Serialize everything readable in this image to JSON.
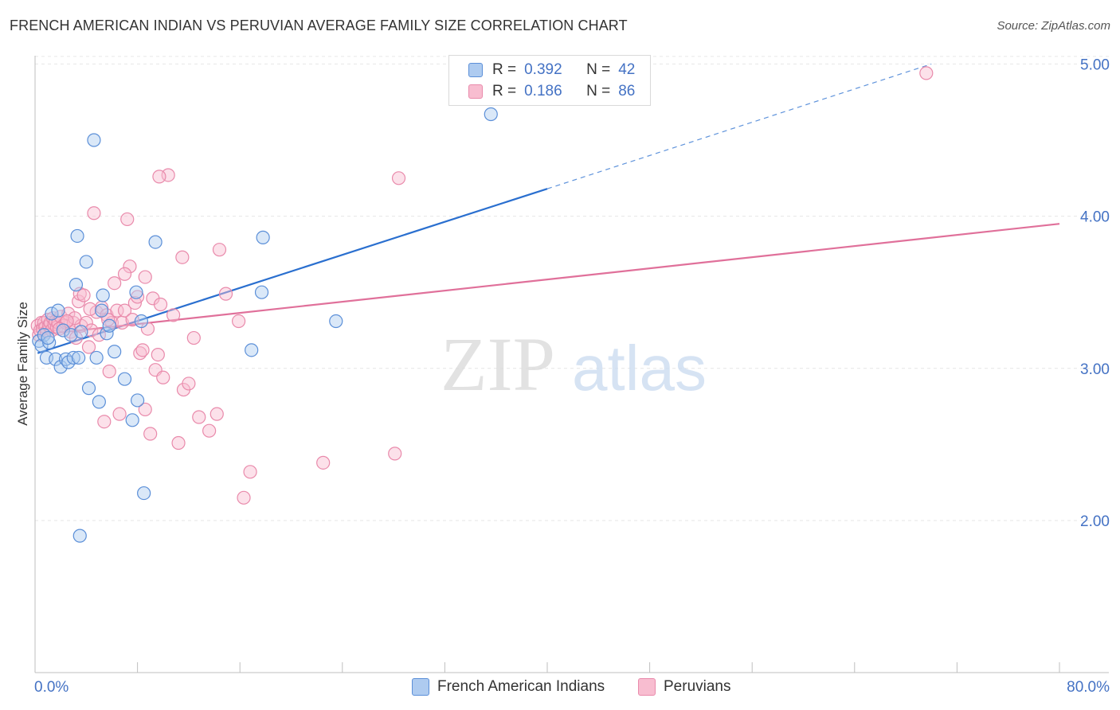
{
  "title": "FRENCH AMERICAN INDIAN VS PERUVIAN AVERAGE FAMILY SIZE CORRELATION CHART",
  "source": "Source: ZipAtlas.com",
  "legend": {
    "rows": [
      {
        "r_label": "R =",
        "r_value": "0.392",
        "n_label": "N =",
        "n_value": "42"
      },
      {
        "r_label": "R =",
        "r_value": "0.186",
        "n_label": "N =",
        "n_value": "86"
      }
    ]
  },
  "bottom_legend": [
    "French American Indians",
    "Peruvians"
  ],
  "watermark": {
    "zip": "ZIP",
    "atlas": "atlas"
  },
  "colors": {
    "blue_fill": "#aecbf0",
    "blue_stroke": "#5b8fd8",
    "blue_line": "#2a6fcf",
    "pink_fill": "#f8bdd0",
    "pink_stroke": "#e98aab",
    "pink_line": "#e0709a",
    "tick_text": "#4472c4",
    "grid": "#e6e6e6"
  },
  "chart_data": {
    "type": "scatter",
    "title": "FRENCH AMERICAN INDIAN VS PERUVIAN AVERAGE FAMILY SIZE CORRELATION CHART",
    "xlabel": "",
    "ylabel": "Average Family Size",
    "xlim": [
      0,
      80
    ],
    "ylim": [
      1.0,
      5.2
    ],
    "x_tick_labels": [
      "0.0%",
      "80.0%"
    ],
    "y_ticks": [
      2.0,
      3.0,
      4.0,
      5.0
    ],
    "y_tick_labels": [
      "2.00",
      "3.00",
      "4.00",
      "5.00"
    ],
    "grid": true,
    "legend_position": "top-center",
    "series": [
      {
        "name": "French American Indians",
        "r": 0.392,
        "n": 42,
        "trend": {
          "x0": 0.2,
          "y0": 3.1,
          "x1": 40,
          "y1": 4.18,
          "dash_to_x": 70,
          "dash_to_y": 5.0
        },
        "points": [
          [
            0.3,
            3.18
          ],
          [
            0.5,
            3.15
          ],
          [
            0.7,
            3.22
          ],
          [
            0.9,
            3.07
          ],
          [
            1.1,
            3.17
          ],
          [
            1.3,
            3.36
          ],
          [
            1.6,
            3.06
          ],
          [
            1.8,
            3.38
          ],
          [
            2.0,
            3.01
          ],
          [
            2.2,
            3.25
          ],
          [
            2.4,
            3.06
          ],
          [
            2.6,
            3.04
          ],
          [
            2.8,
            3.22
          ],
          [
            3.0,
            3.07
          ],
          [
            3.2,
            3.55
          ],
          [
            3.4,
            3.07
          ],
          [
            3.6,
            3.24
          ],
          [
            3.3,
            3.87
          ],
          [
            4.0,
            3.7
          ],
          [
            4.2,
            2.87
          ],
          [
            4.6,
            4.5
          ],
          [
            4.8,
            3.07
          ],
          [
            5.0,
            2.78
          ],
          [
            5.2,
            3.38
          ],
          [
            5.3,
            3.48
          ],
          [
            5.6,
            3.23
          ],
          [
            5.8,
            3.28
          ],
          [
            6.2,
            3.11
          ],
          [
            7.0,
            2.93
          ],
          [
            7.6,
            2.66
          ],
          [
            7.9,
            3.5
          ],
          [
            8.0,
            2.79
          ],
          [
            8.3,
            3.31
          ],
          [
            8.5,
            2.18
          ],
          [
            9.4,
            3.83
          ],
          [
            16.9,
            3.12
          ],
          [
            17.7,
            3.5
          ],
          [
            17.8,
            3.86
          ],
          [
            23.5,
            3.31
          ],
          [
            35.6,
            4.67
          ],
          [
            3.5,
            1.9
          ],
          [
            1.0,
            3.2
          ]
        ]
      },
      {
        "name": "Peruvians",
        "r": 0.186,
        "n": 86,
        "trend": {
          "x0": 0.2,
          "y0": 3.22,
          "x1": 80,
          "y1": 3.95
        },
        "points": [
          [
            0.2,
            3.28
          ],
          [
            0.3,
            3.22
          ],
          [
            0.4,
            3.25
          ],
          [
            0.5,
            3.3
          ],
          [
            0.6,
            3.26
          ],
          [
            0.7,
            3.3
          ],
          [
            0.8,
            3.27
          ],
          [
            0.9,
            3.24
          ],
          [
            1.0,
            3.32
          ],
          [
            1.1,
            3.28
          ],
          [
            1.2,
            3.3
          ],
          [
            1.3,
            3.25
          ],
          [
            1.4,
            3.33
          ],
          [
            1.5,
            3.29
          ],
          [
            1.6,
            3.31
          ],
          [
            1.7,
            3.27
          ],
          [
            1.8,
            3.3
          ],
          [
            2.0,
            3.34
          ],
          [
            2.2,
            3.28
          ],
          [
            2.4,
            3.3
          ],
          [
            2.6,
            3.36
          ],
          [
            2.8,
            3.24
          ],
          [
            3.0,
            3.3
          ],
          [
            3.2,
            3.2
          ],
          [
            3.4,
            3.44
          ],
          [
            3.5,
            3.49
          ],
          [
            3.6,
            3.28
          ],
          [
            3.8,
            3.48
          ],
          [
            4.0,
            3.3
          ],
          [
            4.2,
            3.14
          ],
          [
            4.4,
            3.25
          ],
          [
            4.6,
            4.02
          ],
          [
            4.8,
            3.37
          ],
          [
            5.0,
            3.22
          ],
          [
            5.2,
            3.4
          ],
          [
            5.4,
            2.65
          ],
          [
            5.6,
            3.35
          ],
          [
            5.8,
            2.98
          ],
          [
            6.0,
            3.3
          ],
          [
            6.2,
            3.56
          ],
          [
            6.4,
            3.38
          ],
          [
            6.6,
            2.7
          ],
          [
            6.8,
            3.3
          ],
          [
            7.0,
            3.38
          ],
          [
            7.2,
            3.98
          ],
          [
            7.4,
            3.67
          ],
          [
            7.6,
            3.32
          ],
          [
            7.8,
            3.43
          ],
          [
            8.0,
            3.47
          ],
          [
            8.2,
            3.1
          ],
          [
            8.4,
            3.12
          ],
          [
            8.6,
            2.73
          ],
          [
            8.8,
            3.26
          ],
          [
            9.0,
            2.57
          ],
          [
            9.2,
            3.46
          ],
          [
            9.4,
            2.99
          ],
          [
            9.6,
            3.09
          ],
          [
            9.8,
            3.42
          ],
          [
            10.0,
            2.94
          ],
          [
            10.4,
            4.27
          ],
          [
            10.8,
            3.35
          ],
          [
            11.2,
            2.51
          ],
          [
            11.6,
            2.86
          ],
          [
            12.0,
            2.9
          ],
          [
            12.4,
            3.2
          ],
          [
            12.8,
            2.68
          ],
          [
            13.6,
            2.59
          ],
          [
            14.2,
            2.7
          ],
          [
            14.4,
            3.78
          ],
          [
            14.9,
            3.49
          ],
          [
            15.9,
            3.31
          ],
          [
            16.3,
            2.15
          ],
          [
            16.8,
            2.32
          ],
          [
            22.5,
            2.38
          ],
          [
            28.1,
            2.44
          ],
          [
            28.4,
            4.25
          ],
          [
            69.6,
            4.94
          ],
          [
            8.6,
            3.6
          ],
          [
            11.5,
            3.73
          ],
          [
            9.7,
            4.26
          ],
          [
            7.0,
            3.62
          ],
          [
            4.3,
            3.39
          ],
          [
            3.1,
            3.33
          ],
          [
            2.5,
            3.31
          ],
          [
            1.9,
            3.26
          ],
          [
            5.7,
            3.32
          ]
        ]
      }
    ]
  }
}
